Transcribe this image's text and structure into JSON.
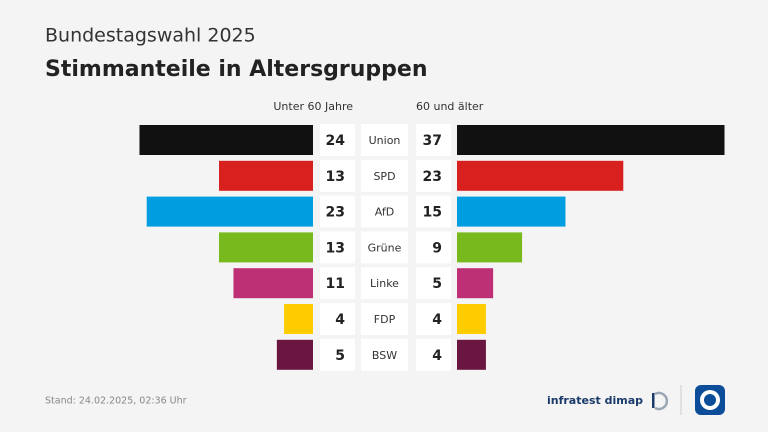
{
  "chart_data": {
    "type": "butterfly",
    "subtitle": "Bundestagswahl 2025",
    "title": "Stimmanteile in Altersgruppen",
    "categories": [
      "Union",
      "SPD",
      "AfD",
      "Grüne",
      "Linke",
      "FDP",
      "BSW"
    ],
    "colors": [
      "#111111",
      "#d8201e",
      "#009ee0",
      "#78b91e",
      "#be3075",
      "#ffcc00",
      "#6b1541"
    ],
    "series": [
      {
        "name": "Unter 60 Jahre",
        "values": [
          24,
          13,
          23,
          13,
          11,
          4,
          5
        ]
      },
      {
        "name": "60 und älter",
        "values": [
          37,
          23,
          15,
          9,
          5,
          4,
          4
        ]
      }
    ],
    "note": "Stand:  24.02.2025, 02:36 Uhr",
    "source": "infratest dimap"
  }
}
